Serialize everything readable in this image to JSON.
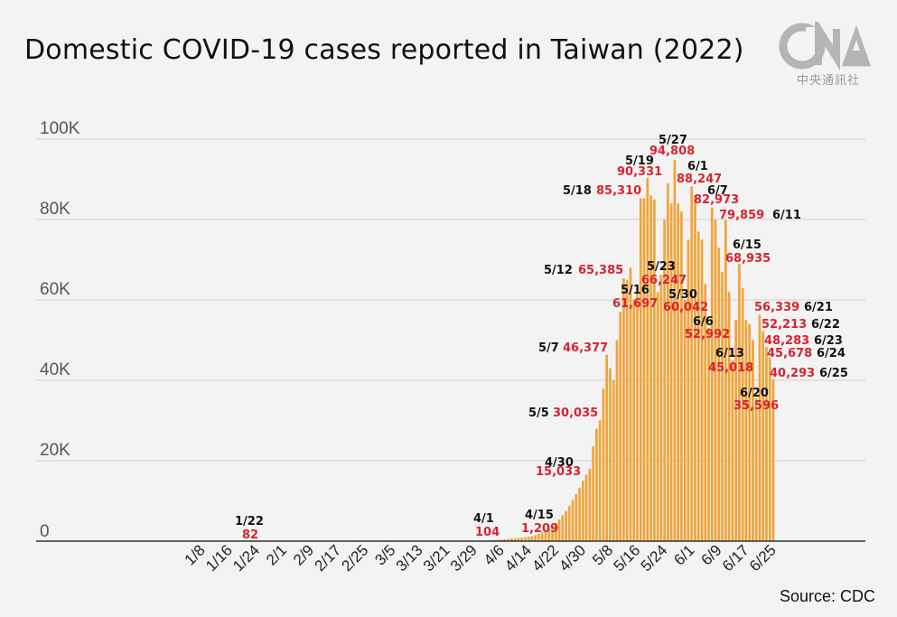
{
  "header": {
    "title": "Domestic COVID-19 cases reported in Taiwan (2022)",
    "source": "Source: CDC"
  },
  "logo": {
    "icon": "cna-logo-icon",
    "letters": "CNA",
    "chinese": "中央通訊社",
    "color": "#b5b5b5"
  },
  "chart_data": {
    "type": "bar",
    "title": "Domestic COVID-19 cases reported in Taiwan (2022)",
    "xlabel": "",
    "ylabel": "",
    "bar_color": "#f0a43a",
    "label_date_color": "#111111",
    "label_value_color": "#d9232e",
    "grid": true,
    "ylim": [
      0,
      100000
    ],
    "yticks": [
      0,
      20000,
      40000,
      60000,
      80000,
      100000
    ],
    "ytick_labels": [
      "0",
      "20K",
      "40K",
      "60K",
      "80K",
      "100K"
    ],
    "x_start": "1/1",
    "x_end": "6/25",
    "xtick_labels": [
      "1/8",
      "1/16",
      "1/24",
      "2/1",
      "2/9",
      "2/17",
      "2/25",
      "3/5",
      "3/13",
      "3/21",
      "3/29",
      "4/6",
      "4/14",
      "4/22",
      "4/30",
      "5/8",
      "5/16",
      "5/24",
      "6/1",
      "6/9",
      "6/17",
      "6/25"
    ],
    "series": [
      {
        "dates": [
          "1/22",
          "4/1",
          "4/2",
          "4/3",
          "4/4",
          "4/5",
          "4/6",
          "4/7",
          "4/8",
          "4/9",
          "4/10",
          "4/11",
          "4/12",
          "4/13",
          "4/14",
          "4/15",
          "4/16",
          "4/17",
          "4/18",
          "4/19",
          "4/20",
          "4/21",
          "4/22",
          "4/23",
          "4/24",
          "4/25",
          "4/26",
          "4/27",
          "4/28",
          "4/29",
          "4/30",
          "5/1",
          "5/2",
          "5/3",
          "5/4",
          "5/5",
          "5/6",
          "5/7",
          "5/8",
          "5/9",
          "5/10",
          "5/11",
          "5/12",
          "5/13",
          "5/14",
          "5/15",
          "5/16",
          "5/17",
          "5/18",
          "5/19",
          "5/20",
          "5/21",
          "5/22",
          "5/23",
          "5/24",
          "5/25",
          "5/26",
          "5/27",
          "5/28",
          "5/29",
          "5/30",
          "5/31",
          "6/1",
          "6/2",
          "6/3",
          "6/4",
          "6/5",
          "6/6",
          "6/7",
          "6/8",
          "6/9",
          "6/10",
          "6/11",
          "6/12",
          "6/13",
          "6/14",
          "6/15",
          "6/16",
          "6/17",
          "6/18",
          "6/19",
          "6/20",
          "6/21",
          "6/22",
          "6/23",
          "6/24",
          "6/25"
        ],
        "values": [
          82,
          104,
          150,
          200,
          260,
          330,
          400,
          480,
          560,
          640,
          720,
          800,
          880,
          960,
          1080,
          1209,
          1500,
          1800,
          2200,
          2600,
          3100,
          3700,
          4500,
          5400,
          6400,
          7500,
          8800,
          10200,
          11700,
          13300,
          15033,
          16500,
          18000,
          23600,
          28000,
          30035,
          38000,
          46377,
          43000,
          40000,
          50000,
          57000,
          65385,
          65000,
          68000,
          60000,
          61697,
          85310,
          85310,
          90331,
          86000,
          85000,
          62000,
          66247,
          80000,
          89000,
          84000,
          94808,
          84000,
          82000,
          60042,
          75000,
          88247,
          86000,
          77000,
          75000,
          64000,
          52992,
          82973,
          80000,
          73000,
          67000,
          79859,
          62000,
          45018,
          55000,
          68935,
          63000,
          55000,
          54000,
          50000,
          35596,
          56339,
          52213,
          48283,
          45678,
          40293
        ]
      }
    ],
    "annotations": [
      {
        "date": "1/22",
        "value": "82"
      },
      {
        "date": "4/1",
        "value": "104"
      },
      {
        "date": "4/15",
        "value": "1,209"
      },
      {
        "date": "4/30",
        "value": "15,033"
      },
      {
        "date": "5/5",
        "value": "30,035"
      },
      {
        "date": "5/7",
        "value": "46,377"
      },
      {
        "date": "5/12",
        "value": "65,385"
      },
      {
        "date": "5/16",
        "value": "61,697"
      },
      {
        "date": "5/18",
        "value": "85,310"
      },
      {
        "date": "5/19",
        "value": "90,331"
      },
      {
        "date": "5/23",
        "value": "66,247"
      },
      {
        "date": "5/27",
        "value": "94,808"
      },
      {
        "date": "5/30",
        "value": "60,042"
      },
      {
        "date": "6/1",
        "value": "88,247"
      },
      {
        "date": "6/6",
        "value": "52,992"
      },
      {
        "date": "6/7",
        "value": "82,973"
      },
      {
        "date": "6/11",
        "value": "79,859"
      },
      {
        "date": "6/13",
        "value": "45,018"
      },
      {
        "date": "6/15",
        "value": "68,935"
      },
      {
        "date": "6/20",
        "value": "35,596"
      },
      {
        "date": "6/21",
        "value": "56,339"
      },
      {
        "date": "6/22",
        "value": "52,213"
      },
      {
        "date": "6/23",
        "value": "48,283"
      },
      {
        "date": "6/24",
        "value": "45,678"
      },
      {
        "date": "6/25",
        "value": "40,293"
      }
    ]
  }
}
